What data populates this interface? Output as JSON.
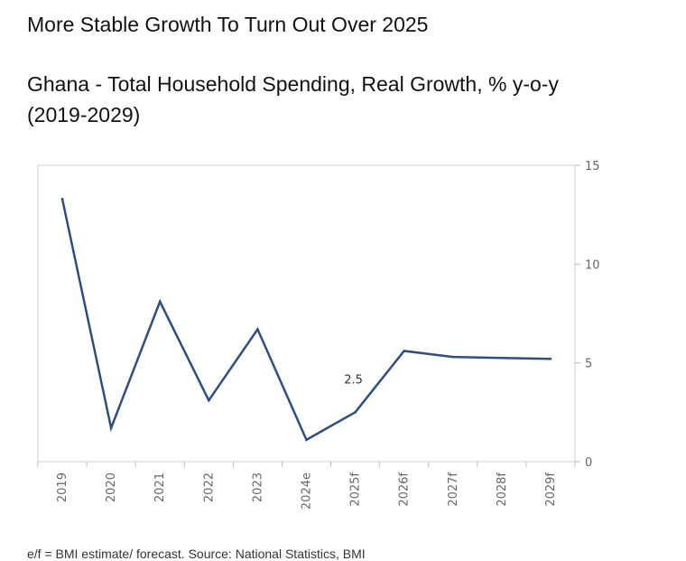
{
  "headline": "More Stable Growth To Turn Out Over 2025",
  "footnote": "e/f = BMI estimate/ forecast. Source: National Statistics, BMI",
  "chart_data": {
    "type": "line",
    "title": "Ghana - Total Household Spending, Real Growth, % y-o-y (2019-2029)",
    "categories": [
      "2019",
      "2020",
      "2021",
      "2022",
      "2023",
      "2024e",
      "2025f",
      "2026f",
      "2027f",
      "2028f",
      "2029f"
    ],
    "series": [
      {
        "values": [
          13.3,
          1.7,
          8.1,
          3.1,
          6.7,
          1.1,
          2.5,
          5.6,
          5.3,
          5.25,
          5.2
        ],
        "color": "#2e4e7e"
      }
    ],
    "annotations": [
      {
        "category": "2025f",
        "text": "2.5"
      }
    ],
    "ylim": [
      0,
      15
    ],
    "yticks": [
      0,
      5,
      10,
      15
    ],
    "y_axis_side": "right",
    "grid": false,
    "legend": "none"
  }
}
